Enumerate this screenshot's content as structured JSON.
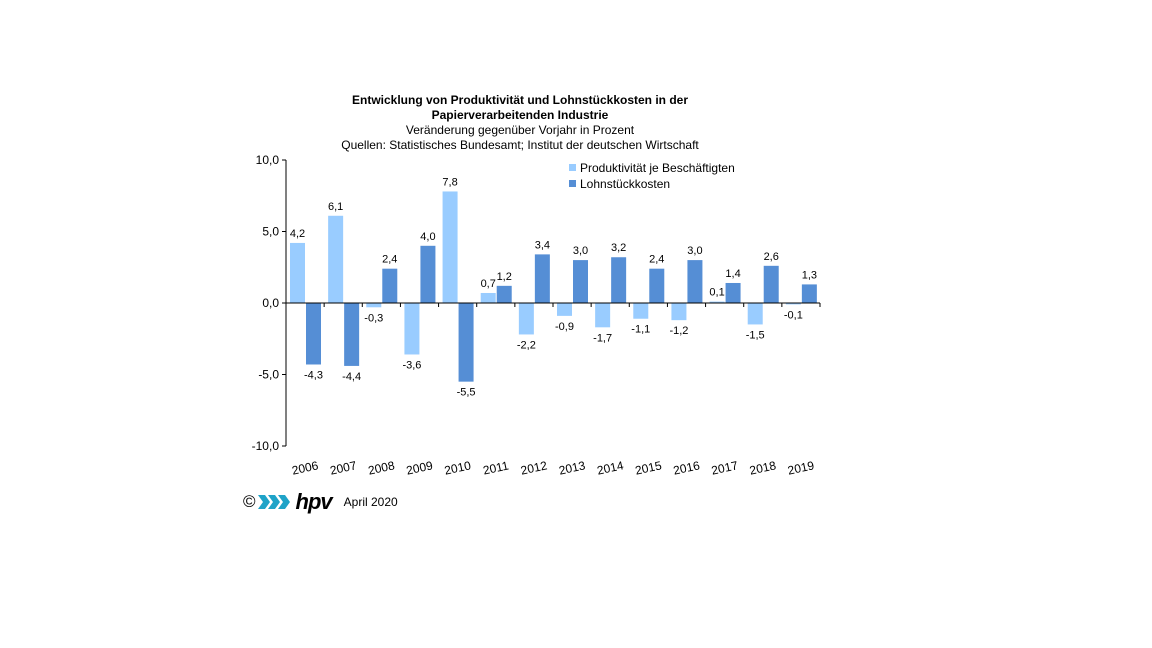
{
  "chart_data": {
    "type": "bar",
    "title": "Entwicklung von Produktivität und Lohnstückkosten  in der",
    "title2": "Papierverarbeitenden Industrie",
    "subtitle": "Veränderung  gegenüber  Vorjahr  in Prozent",
    "source": "Quellen: Statistisches Bundesamt; Institut der deutschen Wirtschaft",
    "categories": [
      "2006",
      "2007",
      "2008",
      "2009",
      "2010",
      "2011",
      "2012",
      "2013",
      "2014",
      "2015",
      "2016",
      "2017",
      "2018",
      "2019"
    ],
    "series": [
      {
        "name": "Produktivität je Beschäftigten",
        "color": "#99ccff",
        "values": [
          4.2,
          6.1,
          -0.3,
          -3.6,
          7.8,
          0.7,
          -2.2,
          -0.9,
          -1.7,
          -1.1,
          -1.2,
          0.1,
          -1.5,
          -0.1
        ],
        "labels": [
          "4,2",
          "6,1",
          "-0,3",
          "-3,6",
          "7,8",
          "0,7",
          "-2,2",
          "-0,9",
          "-1,7",
          "-1,1",
          "-1,2",
          "0,1",
          "-1,5",
          "-0,1"
        ]
      },
      {
        "name": "Lohnstückkosten",
        "color": "#558ed5",
        "values": [
          -4.3,
          -4.4,
          2.4,
          4.0,
          -5.5,
          1.2,
          3.4,
          3.0,
          3.2,
          2.4,
          3.0,
          1.4,
          2.6,
          1.3
        ],
        "labels": [
          "-4,3",
          "-4,4",
          "2,4",
          "4,0",
          "-5,5",
          "1,2",
          "3,4",
          "3,0",
          "3,2",
          "2,4",
          "3,0",
          "1,4",
          "2,6",
          "1,3"
        ]
      }
    ],
    "ylim": [
      -10,
      10
    ],
    "yticks": [
      -10,
      -5,
      0,
      5,
      10
    ],
    "ytick_labels": [
      "-10,0",
      "-5,0",
      "0,0",
      "5,0",
      "10,0"
    ],
    "legend_position": "top-right",
    "grid": false
  },
  "footer": {
    "copyright": "©",
    "logo_text": "hpv",
    "date": "April 2020"
  }
}
